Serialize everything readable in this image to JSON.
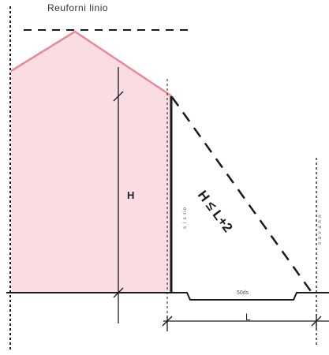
{
  "labels": {
    "top": "Reuforni linio",
    "height": "H",
    "formula": "H ≤ L+2",
    "distance": "L",
    "road": "50ds",
    "vertical_left": "s i s rio",
    "vertical_right": "s a v a n n"
  },
  "colors": {
    "building_fill": "#f9dde3",
    "roof_line": "#e58a9a",
    "ink": "#1a1a1a"
  }
}
